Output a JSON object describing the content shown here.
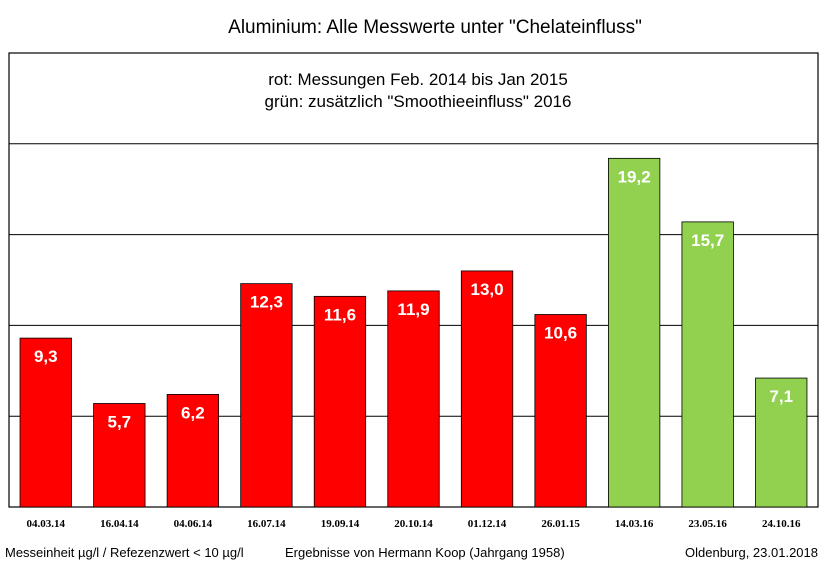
{
  "chart_data": {
    "type": "bar",
    "title": "Aluminium: Alle Messwerte unter \"Chelateinfluss\"",
    "subtitle_lines": [
      "rot: Messungen Feb. 2014 bis Jan 2015",
      "grün: zusätzlich \"Smoothieeinfluss\" 2016"
    ],
    "categories": [
      "04.03.14",
      "16.04.14",
      "04.06.14",
      "16.07.14",
      "19.09.14",
      "20.10.14",
      "01.12.14",
      "26.01.15",
      "14.03.16",
      "23.05.16",
      "24.10.16"
    ],
    "values": [
      9.3,
      5.7,
      6.2,
      12.3,
      11.6,
      11.9,
      13.0,
      10.6,
      19.2,
      15.7,
      7.1
    ],
    "value_labels": [
      "9,3",
      "5,7",
      "6,2",
      "12,3",
      "11,6",
      "11,9",
      "13,0",
      "10,6",
      "19,2",
      "15,7",
      "7,1"
    ],
    "bar_colors": [
      "#ff0000",
      "#ff0000",
      "#ff0000",
      "#ff0000",
      "#ff0000",
      "#ff0000",
      "#ff0000",
      "#ff0000",
      "#92d050",
      "#92d050",
      "#92d050"
    ],
    "ylim": [
      0,
      25
    ],
    "gridlines": [
      5,
      10,
      15,
      20
    ],
    "grid": true,
    "xlabel": "",
    "ylabel": ""
  },
  "footer": {
    "left": "Messeinheit µg/l / Refezenzwert < 10 µg/l",
    "center": "Ergebnisse von Hermann Koop (Jahrgang 1958)",
    "right": "Oldenburg, 23.01.2018"
  }
}
